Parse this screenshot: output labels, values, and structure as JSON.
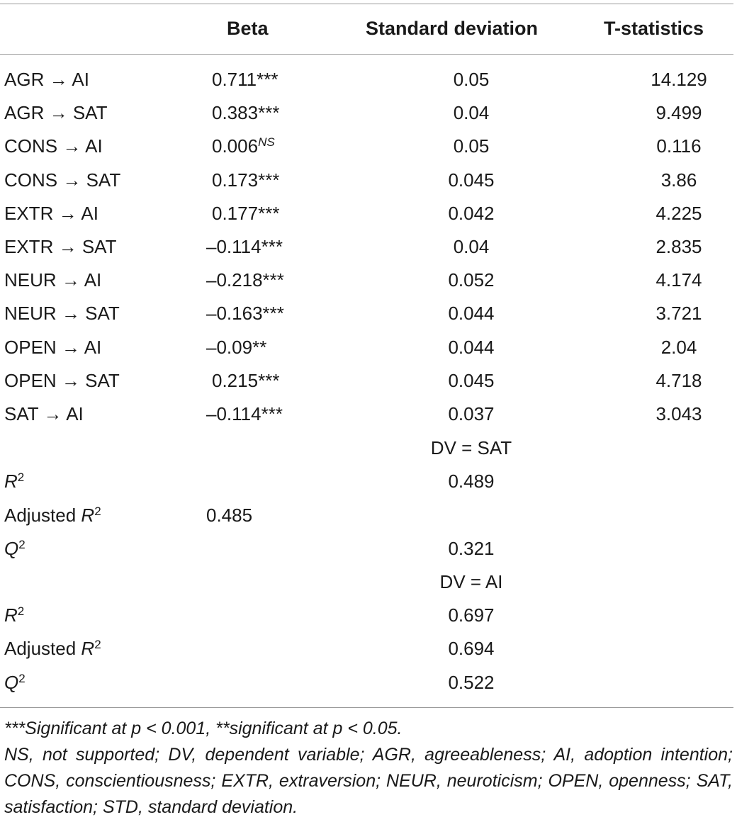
{
  "header": {
    "col_beta": "Beta",
    "col_sd": "Standard deviation",
    "col_t": "T-statistics"
  },
  "arrow": "→",
  "paths": [
    {
      "from": "AGR",
      "to": "AI",
      "beta": "0.711",
      "sig": "***",
      "sd": "0.05",
      "t": "14.129"
    },
    {
      "from": "AGR",
      "to": "SAT",
      "beta": "0.383",
      "sig": "***",
      "sd": "0.04",
      "t": "9.499"
    },
    {
      "from": "CONS",
      "to": "AI",
      "beta": "0.006",
      "sig": "NS",
      "sd": "0.05",
      "t": "0.116"
    },
    {
      "from": "CONS",
      "to": "SAT",
      "beta": "0.173",
      "sig": "***",
      "sd": "0.045",
      "t": "3.86"
    },
    {
      "from": "EXTR",
      "to": "AI",
      "beta": "0.177",
      "sig": "***",
      "sd": "0.042",
      "t": "4.225"
    },
    {
      "from": "EXTR",
      "to": "SAT",
      "beta": "–0.114",
      "sig": "***",
      "sd": "0.04",
      "t": "2.835"
    },
    {
      "from": "NEUR",
      "to": "AI",
      "beta": "–0.218",
      "sig": "***",
      "sd": "0.052",
      "t": "4.174"
    },
    {
      "from": "NEUR",
      "to": "SAT",
      "beta": "–0.163",
      "sig": "***",
      "sd": "0.044",
      "t": "3.721"
    },
    {
      "from": "OPEN",
      "to": "AI",
      "beta": "–0.09",
      "sig": "**",
      "sd": "0.044",
      "t": "2.04"
    },
    {
      "from": "OPEN",
      "to": "SAT",
      "beta": "0.215",
      "sig": "***",
      "sd": "0.045",
      "t": "4.718"
    },
    {
      "from": "SAT",
      "to": "AI",
      "beta": "–0.114",
      "sig": "***",
      "sd": "0.037",
      "t": "3.043"
    }
  ],
  "dv_sat": {
    "label": "DV = SAT",
    "r2_label": "R",
    "r2": "0.489",
    "adj_prefix": "Adjusted ",
    "adj_r2": "0.485",
    "q2_label": "Q",
    "q2": "0.321"
  },
  "dv_ai": {
    "label": "DV = AI",
    "r2_label": "R",
    "r2": "0.697",
    "adj_prefix": "Adjusted ",
    "adj_r2": "0.694",
    "q2_label": "Q",
    "q2": "0.522"
  },
  "superscript_2": "2",
  "notes": {
    "line1": "***Significant at p < 0.001, **significant at p < 0.05.",
    "line2": "NS, not supported; DV, dependent variable; AGR, agreeableness; AI, adoption intention; CONS, conscientiousness; EXTR, extraversion; NEUR, neuroticism; OPEN, openness; SAT, satisfaction; STD, standard deviation."
  }
}
